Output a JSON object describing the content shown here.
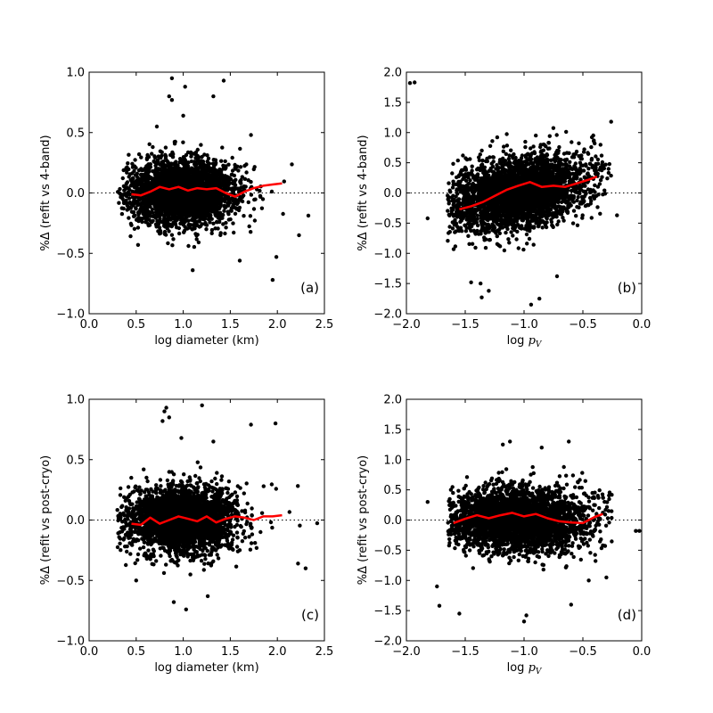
{
  "chart_data": [
    {
      "type": "scatter",
      "panel_label": "(a)",
      "xlabel": "log diameter (km)",
      "ylabel": "%Δ (refit vs 4-band)",
      "xlim": [
        0.0,
        2.5
      ],
      "ylim": [
        -1.0,
        1.0
      ],
      "xticks": [
        0.0,
        0.5,
        1.0,
        1.5,
        2.0,
        2.5
      ],
      "yticks": [
        -1.0,
        -0.5,
        0.0,
        0.5,
        1.0
      ],
      "xtick_labels": [
        "0.0",
        "0.5",
        "1.0",
        "1.5",
        "2.0",
        "2.5"
      ],
      "ytick_labels": [
        "−1.0",
        "−0.5",
        "0.0",
        "0.5",
        "1.0"
      ],
      "reference_line_y": 0.0,
      "point_color": "#000000",
      "trend_color": "#ff0000",
      "cloud": {
        "x_range": [
          0.3,
          2.5
        ],
        "x_center": 1.0,
        "x_spread": 0.28,
        "y_center": 0.0,
        "y_spread": 0.13,
        "count": 3200
      },
      "outliers": [
        [
          0.88,
          0.95
        ],
        [
          0.85,
          0.8
        ],
        [
          0.88,
          0.77
        ],
        [
          1.02,
          0.88
        ],
        [
          1.32,
          0.8
        ],
        [
          1.43,
          0.93
        ],
        [
          1.0,
          0.64
        ],
        [
          1.72,
          0.48
        ],
        [
          1.99,
          -0.53
        ],
        [
          1.95,
          -0.72
        ],
        [
          1.1,
          -0.64
        ],
        [
          1.6,
          -0.56
        ],
        [
          0.72,
          0.55
        ],
        [
          2.23,
          -0.35
        ],
        [
          0.52,
          -0.43
        ]
      ],
      "trend": {
        "x": [
          0.45,
          0.55,
          0.65,
          0.75,
          0.85,
          0.95,
          1.05,
          1.15,
          1.25,
          1.35,
          1.45,
          1.55,
          1.65,
          1.75,
          1.85,
          1.95,
          2.05
        ],
        "y": [
          -0.01,
          -0.02,
          0.01,
          0.05,
          0.03,
          0.05,
          0.02,
          0.04,
          0.03,
          0.04,
          0.0,
          -0.03,
          0.01,
          0.04,
          0.06,
          0.07,
          0.08
        ]
      }
    },
    {
      "type": "scatter",
      "panel_label": "(b)",
      "xlabel": "log p_V",
      "ylabel": "%Δ (refit vs 4-band)",
      "xlim": [
        -2.0,
        0.0
      ],
      "ylim": [
        -2.0,
        2.0
      ],
      "xticks": [
        -2.0,
        -1.5,
        -1.0,
        -0.5,
        0.0
      ],
      "yticks": [
        -2.0,
        -1.5,
        -1.0,
        -0.5,
        0.0,
        0.5,
        1.0,
        1.5,
        2.0
      ],
      "xtick_labels": [
        "−2.0",
        "−1.5",
        "−1.0",
        "−0.5",
        "0.0"
      ],
      "ytick_labels": [
        "−2.0",
        "−1.5",
        "−1.0",
        "−0.5",
        "0.0",
        "0.5",
        "1.0",
        "1.5",
        "2.0"
      ],
      "reference_line_y": 0.0,
      "point_color": "#000000",
      "trend_color": "#ff0000",
      "cloud": {
        "x_range": [
          -1.65,
          -0.25
        ],
        "x_center": -1.05,
        "x_spread": 0.3,
        "y_center": 0.0,
        "y_spread": 0.28,
        "count": 3200,
        "slope": 0.35
      },
      "outliers": [
        [
          -1.97,
          1.82
        ],
        [
          -1.93,
          1.83
        ],
        [
          -0.26,
          1.18
        ],
        [
          -0.9,
          0.95
        ],
        [
          -1.37,
          -1.5
        ],
        [
          -1.3,
          -1.62
        ],
        [
          -1.45,
          -1.48
        ],
        [
          -0.72,
          -1.38
        ],
        [
          -0.94,
          -1.85
        ],
        [
          -0.87,
          -1.75
        ],
        [
          -1.36,
          -1.73
        ],
        [
          -1.82,
          -0.42
        ],
        [
          -1.52,
          0.62
        ],
        [
          -0.21,
          -0.37
        ],
        [
          -0.4,
          0.82
        ]
      ],
      "trend": {
        "x": [
          -1.55,
          -1.45,
          -1.35,
          -1.25,
          -1.15,
          -1.05,
          -0.95,
          -0.85,
          -0.75,
          -0.65,
          -0.55,
          -0.45,
          -0.38
        ],
        "y": [
          -0.27,
          -0.22,
          -0.15,
          -0.05,
          0.05,
          0.12,
          0.18,
          0.1,
          0.12,
          0.1,
          0.16,
          0.22,
          0.27
        ]
      }
    },
    {
      "type": "scatter",
      "panel_label": "(c)",
      "xlabel": "log diameter (km)",
      "ylabel": "%Δ (refit vs post-cryo)",
      "xlim": [
        0.0,
        2.5
      ],
      "ylim": [
        -1.0,
        1.0
      ],
      "xticks": [
        0.0,
        0.5,
        1.0,
        1.5,
        2.0,
        2.5
      ],
      "yticks": [
        -1.0,
        -0.5,
        0.0,
        0.5,
        1.0
      ],
      "xtick_labels": [
        "0.0",
        "0.5",
        "1.0",
        "1.5",
        "2.0",
        "2.5"
      ],
      "ytick_labels": [
        "−1.0",
        "−0.5",
        "0.0",
        "0.5",
        "1.0"
      ],
      "reference_line_y": 0.0,
      "point_color": "#000000",
      "trend_color": "#ff0000",
      "cloud": {
        "x_range": [
          0.3,
          2.5
        ],
        "x_center": 1.0,
        "x_spread": 0.28,
        "y_center": 0.0,
        "y_spread": 0.13,
        "count": 3200
      },
      "outliers": [
        [
          0.8,
          0.9
        ],
        [
          0.82,
          0.93
        ],
        [
          0.85,
          0.85
        ],
        [
          0.78,
          0.82
        ],
        [
          1.2,
          0.95
        ],
        [
          1.72,
          0.79
        ],
        [
          1.98,
          0.8
        ],
        [
          0.98,
          0.68
        ],
        [
          1.32,
          0.65
        ],
        [
          0.9,
          -0.68
        ],
        [
          1.03,
          -0.74
        ],
        [
          1.26,
          -0.63
        ],
        [
          2.22,
          -0.36
        ],
        [
          2.3,
          -0.4
        ],
        [
          0.5,
          -0.5
        ]
      ],
      "trend": {
        "x": [
          0.45,
          0.55,
          0.65,
          0.75,
          0.85,
          0.95,
          1.05,
          1.15,
          1.25,
          1.35,
          1.45,
          1.55,
          1.65,
          1.75,
          1.85,
          1.95,
          2.05
        ],
        "y": [
          -0.03,
          -0.04,
          0.02,
          -0.03,
          0.0,
          0.03,
          0.01,
          -0.01,
          0.03,
          -0.02,
          0.01,
          0.03,
          0.02,
          0.0,
          0.03,
          0.03,
          0.04
        ]
      }
    },
    {
      "type": "scatter",
      "panel_label": "(d)",
      "xlabel": "log p_V",
      "ylabel": "%Δ (refit vs post-cryo)",
      "xlim": [
        -2.0,
        0.0
      ],
      "ylim": [
        -2.0,
        2.0
      ],
      "xticks": [
        -2.0,
        -1.5,
        -1.0,
        -0.5,
        0.0
      ],
      "yticks": [
        -2.0,
        -1.5,
        -1.0,
        -0.5,
        0.0,
        0.5,
        1.0,
        1.5,
        2.0
      ],
      "xtick_labels": [
        "−2.0",
        "−1.5",
        "−1.0",
        "−0.5",
        "0.0"
      ],
      "ytick_labels": [
        "−2.0",
        "−1.5",
        "−1.0",
        "−0.5",
        "0.0",
        "0.5",
        "1.0",
        "1.5",
        "2.0"
      ],
      "reference_line_y": 0.0,
      "point_color": "#000000",
      "trend_color": "#ff0000",
      "cloud": {
        "x_range": [
          -1.65,
          -0.25
        ],
        "x_center": -1.05,
        "x_spread": 0.3,
        "y_center": 0.0,
        "y_spread": 0.26,
        "count": 3200
      },
      "outliers": [
        [
          -1.55,
          -1.55
        ],
        [
          -1.72,
          -1.42
        ],
        [
          -1.74,
          -1.1
        ],
        [
          -0.98,
          -1.58
        ],
        [
          -1.0,
          -1.68
        ],
        [
          -0.6,
          -1.4
        ],
        [
          -1.12,
          1.3
        ],
        [
          -1.18,
          1.25
        ],
        [
          -0.62,
          1.3
        ],
        [
          -0.05,
          -0.18
        ],
        [
          -0.02,
          -0.18
        ],
        [
          -0.45,
          -1.0
        ],
        [
          -0.3,
          -0.95
        ],
        [
          -1.82,
          0.3
        ],
        [
          -0.85,
          1.2
        ]
      ],
      "trend": {
        "x": [
          -1.6,
          -1.5,
          -1.4,
          -1.3,
          -1.2,
          -1.1,
          -1.0,
          -0.9,
          -0.8,
          -0.7,
          -0.6,
          -0.5,
          -0.4,
          -0.33
        ],
        "y": [
          -0.05,
          0.02,
          0.08,
          0.03,
          0.08,
          0.12,
          0.06,
          0.1,
          0.03,
          -0.02,
          -0.04,
          -0.05,
          0.05,
          0.1
        ]
      }
    }
  ]
}
